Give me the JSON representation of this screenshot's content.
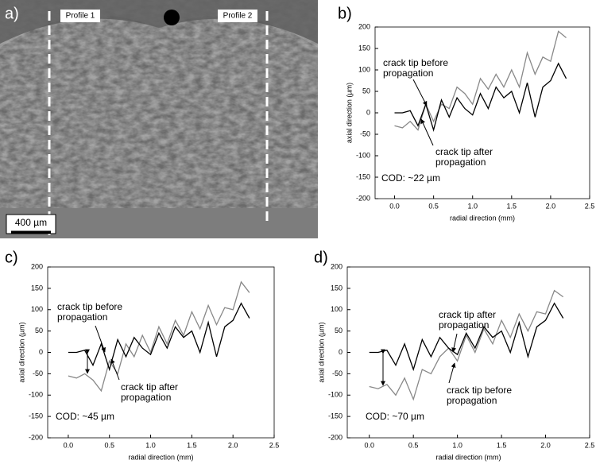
{
  "image": {
    "label": "a)",
    "profiles": [
      "Profile 1",
      "Profile 2"
    ],
    "scale_bar": "400 µm"
  },
  "chart_data": [
    {
      "type": "line",
      "label": "b)",
      "xlabel": "radial direction (mm)",
      "ylabel": "axial direction (µm)",
      "annotations": [
        {
          "lines": [
            "crack tip before",
            "propagation"
          ]
        },
        {
          "lines": [
            "crack tip after",
            "propagation"
          ]
        }
      ],
      "cod": "COD: ~22 µm",
      "xlim": [
        -0.25,
        2.5
      ],
      "ylim": [
        -200,
        200
      ],
      "xticks": [
        {
          "value": 0,
          "label": "0.0"
        },
        {
          "value": 0.5,
          "label": "0.5"
        },
        {
          "value": 1,
          "label": "1.0"
        },
        {
          "value": 1.5,
          "label": "1.5"
        },
        {
          "value": 2,
          "label": "2.0"
        },
        {
          "value": 2.5,
          "label": "2.5"
        }
      ],
      "yticks": [
        -200,
        -150,
        -100,
        -50,
        0,
        50,
        100,
        150,
        200
      ],
      "x": [
        0,
        0.1,
        0.2,
        0.3,
        0.4,
        0.5,
        0.6,
        0.7,
        0.8,
        0.9,
        1,
        1.1,
        1.2,
        1.3,
        1.4,
        1.5,
        1.6,
        1.7,
        1.8,
        1.9,
        2,
        2.1,
        2.2
      ],
      "series": [
        {
          "color": "#888888",
          "values": [
            -30,
            -35,
            -20,
            -40,
            20,
            -20,
            20,
            10,
            60,
            45,
            20,
            80,
            55,
            90,
            60,
            100,
            60,
            140,
            90,
            130,
            120,
            190,
            175
          ]
        },
        {
          "color": "#000000",
          "values": [
            0,
            0,
            5,
            -30,
            20,
            -40,
            30,
            -10,
            35,
            10,
            -5,
            45,
            10,
            60,
            35,
            50,
            0,
            70,
            -10,
            60,
            75,
            115,
            80
          ]
        }
      ]
    },
    {
      "type": "line",
      "label": "c)",
      "xlabel": "radial direction (mm)",
      "ylabel": "axial direction (µm)",
      "annotations": [
        {
          "lines": [
            "crack tip before",
            "propagation"
          ]
        },
        {
          "lines": [
            "crack tip after",
            "propagation"
          ]
        }
      ],
      "cod": "COD: ~45 µm",
      "xlim": [
        -0.25,
        2.5
      ],
      "ylim": [
        -200,
        200
      ],
      "xticks": [
        {
          "value": 0,
          "label": "0.0"
        },
        {
          "value": 0.5,
          "label": "0.5"
        },
        {
          "value": 1,
          "label": "1.0"
        },
        {
          "value": 1.5,
          "label": "1.5"
        },
        {
          "value": 2,
          "label": "2.0"
        },
        {
          "value": 2.5,
          "label": "2.5"
        }
      ],
      "yticks": [
        -200,
        -150,
        -100,
        -50,
        0,
        50,
        100,
        150,
        200
      ],
      "x": [
        0,
        0.1,
        0.2,
        0.3,
        0.4,
        0.5,
        0.6,
        0.7,
        0.8,
        0.9,
        1,
        1.1,
        1.2,
        1.3,
        1.4,
        1.5,
        1.6,
        1.7,
        1.8,
        1.9,
        2,
        2.1,
        2.2
      ],
      "series": [
        {
          "color": "#888888",
          "values": [
            -55,
            -60,
            -50,
            -65,
            -90,
            -20,
            -50,
            20,
            -10,
            40,
            0,
            60,
            20,
            75,
            40,
            95,
            55,
            110,
            65,
            105,
            100,
            165,
            140
          ]
        },
        {
          "color": "#000000",
          "values": [
            0,
            0,
            5,
            -30,
            20,
            -40,
            30,
            -10,
            35,
            10,
            -5,
            45,
            10,
            60,
            35,
            50,
            0,
            70,
            -10,
            60,
            75,
            115,
            80
          ]
        }
      ]
    },
    {
      "type": "line",
      "label": "d)",
      "xlabel": "radial direction (mm)",
      "ylabel": "axial direction (µm)",
      "annotations": [
        {
          "lines": [
            "crack tip after",
            "propagation"
          ]
        },
        {
          "lines": [
            "crack tip before",
            "propagation"
          ]
        }
      ],
      "cod": "COD: ~70 µm",
      "xlim": [
        -0.25,
        2.5
      ],
      "ylim": [
        -200,
        200
      ],
      "xticks": [
        {
          "value": 0,
          "label": "0.0"
        },
        {
          "value": 0.5,
          "label": "0.5"
        },
        {
          "value": 1,
          "label": "1.0"
        },
        {
          "value": 1.5,
          "label": "1.5"
        },
        {
          "value": 2,
          "label": "2.0"
        },
        {
          "value": 2.5,
          "label": "2.5"
        }
      ],
      "yticks": [
        -200,
        -150,
        -100,
        -50,
        0,
        50,
        100,
        150,
        200
      ],
      "x": [
        0,
        0.1,
        0.2,
        0.3,
        0.4,
        0.5,
        0.6,
        0.7,
        0.8,
        0.9,
        1,
        1.1,
        1.2,
        1.3,
        1.4,
        1.5,
        1.6,
        1.7,
        1.8,
        1.9,
        2,
        2.1,
        2.2
      ],
      "series": [
        {
          "color": "#888888",
          "values": [
            -80,
            -85,
            -75,
            -100,
            -60,
            -110,
            -40,
            -50,
            -10,
            10,
            -20,
            40,
            0,
            55,
            20,
            75,
            35,
            90,
            50,
            95,
            90,
            145,
            130
          ]
        },
        {
          "color": "#000000",
          "values": [
            0,
            0,
            5,
            -30,
            20,
            -40,
            30,
            -10,
            35,
            10,
            -5,
            45,
            10,
            60,
            35,
            50,
            0,
            70,
            -10,
            60,
            75,
            115,
            80
          ]
        }
      ]
    }
  ]
}
